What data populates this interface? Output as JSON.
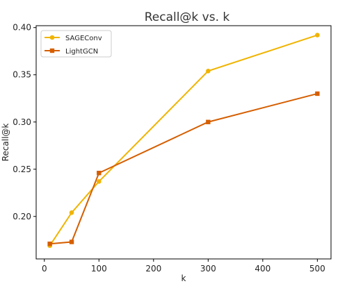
{
  "chart_data": {
    "type": "line",
    "title": "Recall@k vs. k",
    "xlabel": "k",
    "ylabel": "Recall@k",
    "xlim": [
      -15,
      525
    ],
    "ylim": [
      0.155,
      0.402
    ],
    "xticks": [
      0,
      100,
      200,
      300,
      400,
      500
    ],
    "yticks": [
      0.2,
      0.25,
      0.3,
      0.35,
      0.4
    ],
    "grid": false,
    "legend": "top-left",
    "series": [
      {
        "name": "SAGEConv",
        "color": "#f0b400",
        "marker": "circle",
        "x": [
          10,
          50,
          100,
          300,
          500
        ],
        "y": [
          0.169,
          0.204,
          0.237,
          0.354,
          0.392
        ]
      },
      {
        "name": "LightGCN",
        "color": "#d55e00",
        "marker": "square",
        "x": [
          10,
          50,
          100,
          300,
          500
        ],
        "y": [
          0.171,
          0.173,
          0.246,
          0.3,
          0.33
        ]
      }
    ]
  }
}
